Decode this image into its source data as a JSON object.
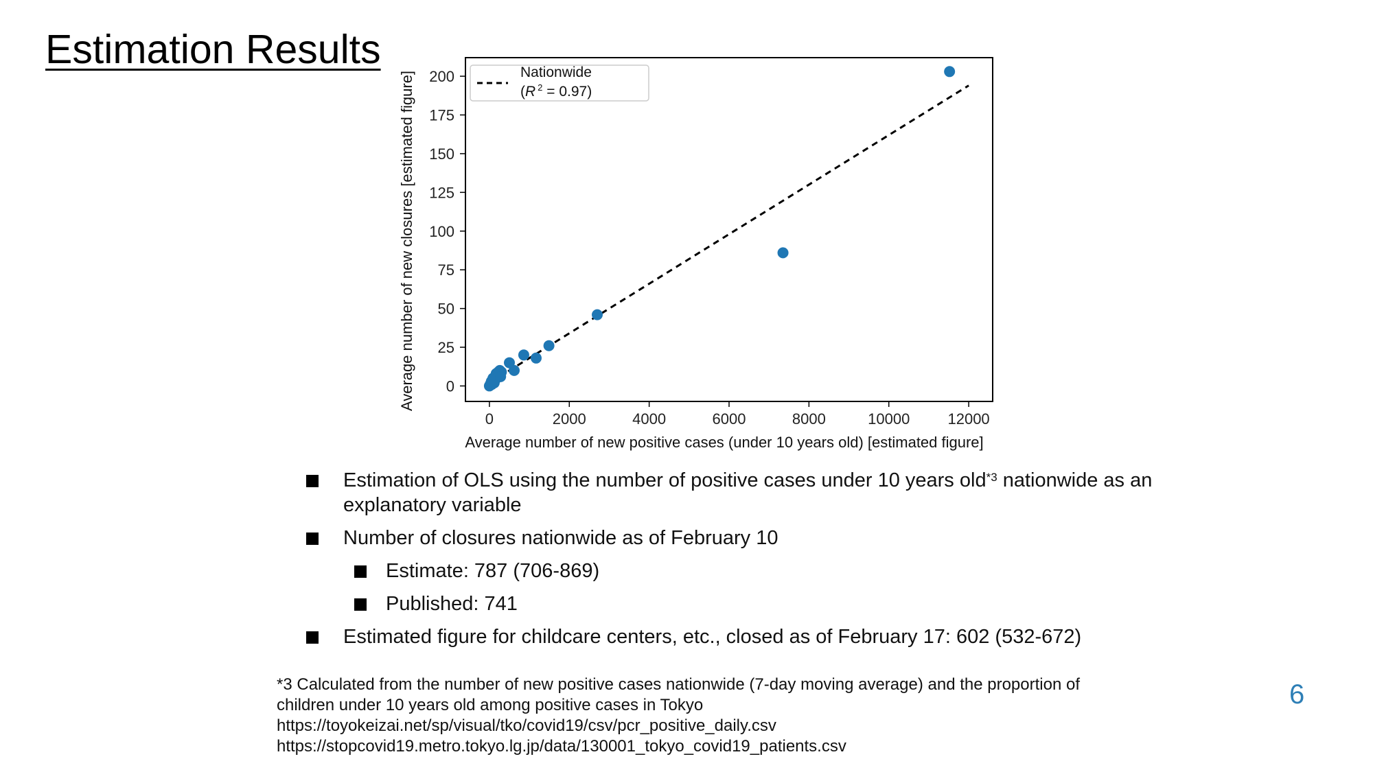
{
  "slide": {
    "title": "Estimation Results",
    "page_number": "6"
  },
  "chart_data": {
    "type": "scatter",
    "xlabel": "Average number of new positive cases (under 10 years old) [estimated figure]",
    "ylabel": "Average number of new closures [estimated figure]",
    "xlim": [
      -600,
      12600
    ],
    "ylim": [
      -10,
      212
    ],
    "xticks": [
      0,
      2000,
      4000,
      6000,
      8000,
      10000,
      12000
    ],
    "yticks": [
      0,
      25,
      50,
      75,
      100,
      125,
      150,
      175,
      200
    ],
    "grid": false,
    "legend_position": "top-left",
    "legend": {
      "line1": "Nationwide",
      "r2_prefix": "(",
      "r2_symbol": "R",
      "r2_sup": "2",
      "r2_suffix": " = 0.97)"
    },
    "series": [
      {
        "kind": "points",
        "color": "#1f77b4",
        "x": [
          0,
          20,
          40,
          60,
          80,
          100,
          120,
          150,
          180,
          200,
          230,
          260,
          300,
          50,
          90,
          140,
          170,
          220,
          280,
          500,
          620,
          860,
          1170,
          1490,
          2700,
          7350,
          11520
        ],
        "y": [
          0,
          1,
          2,
          1,
          3,
          4,
          2,
          6,
          5,
          8,
          7,
          10,
          9,
          3,
          5,
          4,
          8,
          9,
          6,
          15,
          10,
          20,
          18,
          26,
          46,
          86,
          203
        ]
      },
      {
        "kind": "fit_line",
        "name": "Nationwide",
        "color": "#000000",
        "style": "dashed",
        "x": [
          0,
          12000
        ],
        "y": [
          2,
          194
        ]
      }
    ]
  },
  "bullets": [
    {
      "level": 1,
      "text": "Estimation of OLS using the number of positive cases under 10 years old",
      "sup": "*3",
      "text_after": " nationwide as an explanatory variable"
    },
    {
      "level": 1,
      "text": "Number of closures nationwide as of February 10"
    },
    {
      "level": 2,
      "text": "Estimate: 787 (706-869)"
    },
    {
      "level": 2,
      "text": "Published: 741"
    },
    {
      "level": 1,
      "text": "Estimated figure for childcare centers, etc., closed as of February 17: 602 (532-672)"
    }
  ],
  "footnote": {
    "line1": "*3 Calculated from the number of new positive cases nationwide (7-day moving average) and the proportion of",
    "line2": "children under 10 years old among positive cases in Tokyo",
    "line3": "https://toyokeizai.net/sp/visual/tko/covid19/csv/pcr_positive_daily.csv",
    "line4": "https://stopcovid19.metro.tokyo.lg.jp/data/130001_tokyo_covid19_patients.csv"
  }
}
